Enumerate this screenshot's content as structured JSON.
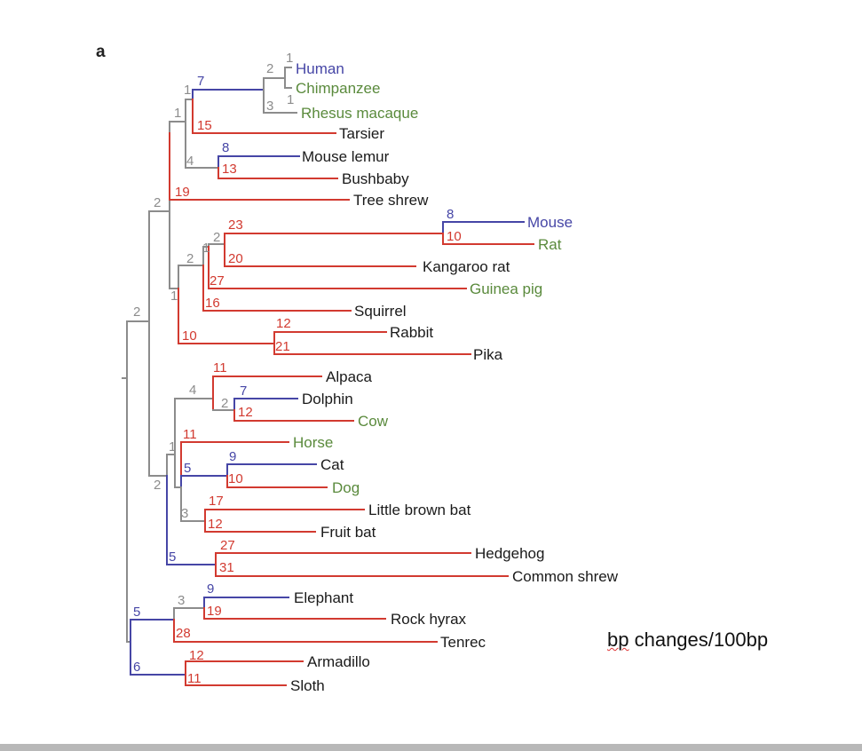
{
  "panel_letter": "a",
  "scale_label_word": "bp",
  "scale_label_rest": " changes/100bp",
  "colors": {
    "blue": "#4646a6",
    "red": "#d23a30",
    "gray": "#8c8c8c",
    "green": "#5a8a3c",
    "black": "#1a1a1a"
  },
  "leaves": [
    {
      "name": "Human",
      "color": "blue"
    },
    {
      "name": "Chimpanzee",
      "color": "green"
    },
    {
      "name": "Rhesus macaque",
      "color": "green"
    },
    {
      "name": "Tarsier",
      "color": "black"
    },
    {
      "name": "Mouse lemur",
      "color": "black"
    },
    {
      "name": "Bushbaby",
      "color": "black"
    },
    {
      "name": "Tree shrew",
      "color": "black"
    },
    {
      "name": "Mouse",
      "color": "blue"
    },
    {
      "name": "Rat",
      "color": "green"
    },
    {
      "name": "Kangaroo rat",
      "color": "black"
    },
    {
      "name": "Guinea pig",
      "color": "green"
    },
    {
      "name": "Squirrel",
      "color": "black"
    },
    {
      "name": "Rabbit",
      "color": "black"
    },
    {
      "name": "Pika",
      "color": "black"
    },
    {
      "name": "Alpaca",
      "color": "black"
    },
    {
      "name": "Dolphin",
      "color": "black"
    },
    {
      "name": "Cow",
      "color": "green"
    },
    {
      "name": "Horse",
      "color": "green"
    },
    {
      "name": "Cat",
      "color": "black"
    },
    {
      "name": "Dog",
      "color": "green"
    },
    {
      "name": "Little brown bat",
      "color": "black"
    },
    {
      "name": "Fruit bat",
      "color": "black"
    },
    {
      "name": "Hedgehog",
      "color": "black"
    },
    {
      "name": "Common shrew",
      "color": "black"
    },
    {
      "name": "Elephant",
      "color": "black"
    },
    {
      "name": "Rock hyrax",
      "color": "black"
    },
    {
      "name": "Tenrec",
      "color": "black"
    },
    {
      "name": "Armadillo",
      "color": "black"
    },
    {
      "name": "Sloth",
      "color": "black"
    }
  ],
  "branch_labels": [
    {
      "value": "1",
      "color": "gray"
    },
    {
      "value": "2",
      "color": "gray"
    },
    {
      "value": "1",
      "color": "gray"
    },
    {
      "value": "3",
      "color": "gray"
    },
    {
      "value": "7",
      "color": "blue"
    },
    {
      "value": "1",
      "color": "gray"
    },
    {
      "value": "15",
      "color": "red"
    },
    {
      "value": "1",
      "color": "gray"
    },
    {
      "value": "8",
      "color": "blue"
    },
    {
      "value": "4",
      "color": "gray"
    },
    {
      "value": "13",
      "color": "red"
    },
    {
      "value": "2",
      "color": "gray"
    },
    {
      "value": "19",
      "color": "red"
    },
    {
      "value": "23",
      "color": "red"
    },
    {
      "value": "2",
      "color": "gray"
    },
    {
      "value": "1",
      "color": "gray"
    },
    {
      "value": "2",
      "color": "gray"
    },
    {
      "value": "20",
      "color": "red"
    },
    {
      "value": "27",
      "color": "red"
    },
    {
      "value": "1",
      "color": "gray"
    },
    {
      "value": "16",
      "color": "red"
    },
    {
      "value": "2",
      "color": "gray"
    },
    {
      "value": "10",
      "color": "red"
    },
    {
      "value": "12",
      "color": "red"
    },
    {
      "value": "21",
      "color": "red"
    },
    {
      "value": "8",
      "color": "blue"
    },
    {
      "value": "10",
      "color": "red"
    },
    {
      "value": "11",
      "color": "red"
    },
    {
      "value": "4",
      "color": "gray"
    },
    {
      "value": "7",
      "color": "blue"
    },
    {
      "value": "2",
      "color": "gray"
    },
    {
      "value": "12",
      "color": "red"
    },
    {
      "value": "11",
      "color": "red"
    },
    {
      "value": "1",
      "color": "gray"
    },
    {
      "value": "5",
      "color": "blue"
    },
    {
      "value": "9",
      "color": "blue"
    },
    {
      "value": "10",
      "color": "red"
    },
    {
      "value": "2",
      "color": "gray"
    },
    {
      "value": "17",
      "color": "red"
    },
    {
      "value": "3",
      "color": "gray"
    },
    {
      "value": "12",
      "color": "red"
    },
    {
      "value": "27",
      "color": "red"
    },
    {
      "value": "5",
      "color": "blue"
    },
    {
      "value": "31",
      "color": "red"
    },
    {
      "value": "9",
      "color": "blue"
    },
    {
      "value": "3",
      "color": "gray"
    },
    {
      "value": "19",
      "color": "red"
    },
    {
      "value": "5",
      "color": "blue"
    },
    {
      "value": "28",
      "color": "red"
    },
    {
      "value": "12",
      "color": "red"
    },
    {
      "value": "6",
      "color": "blue"
    },
    {
      "value": "11",
      "color": "red"
    }
  ]
}
